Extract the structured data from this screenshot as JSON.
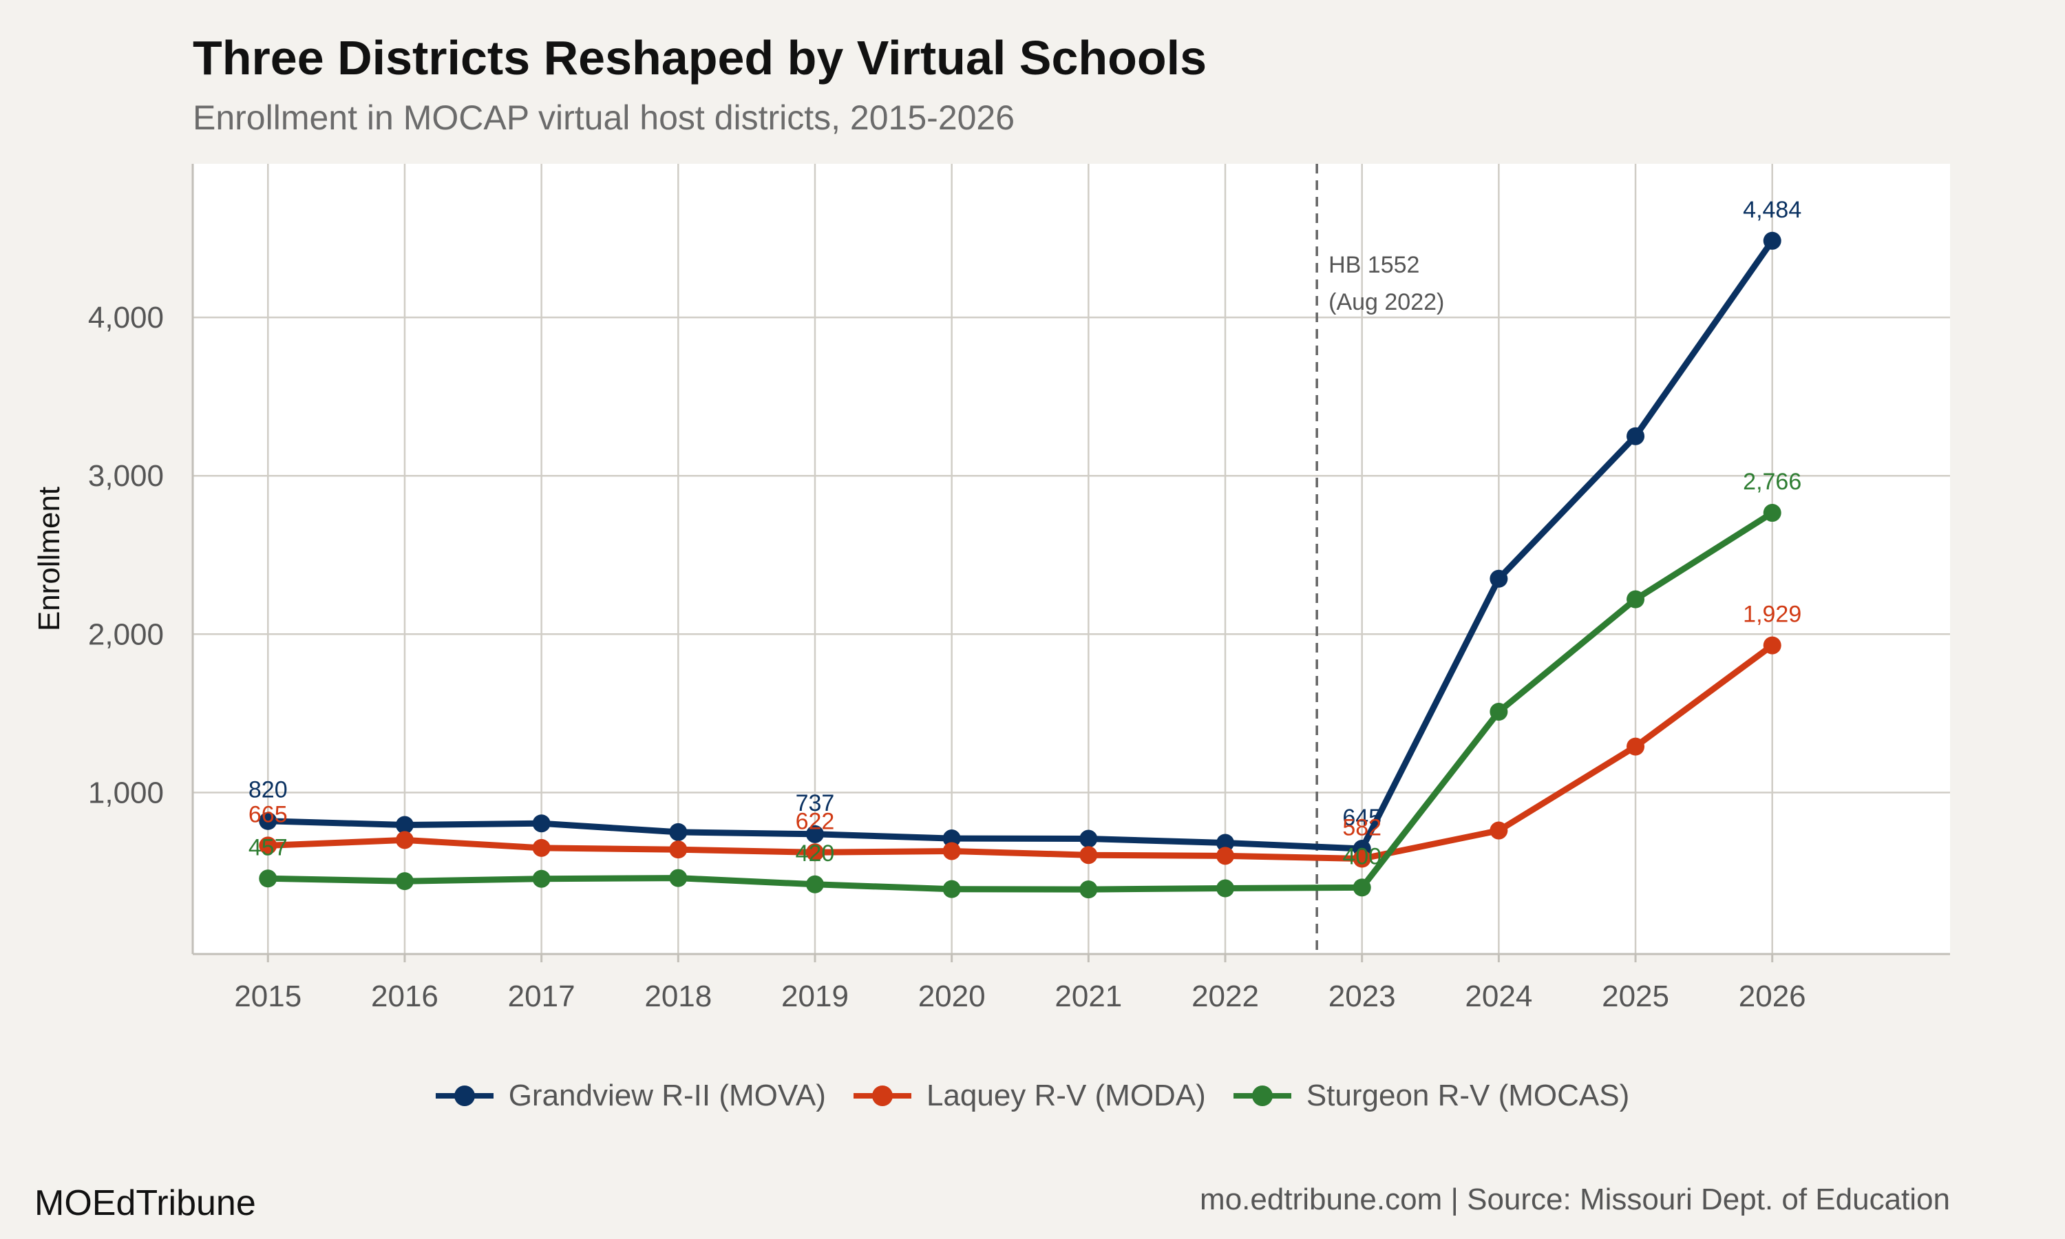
{
  "title": "Three Districts Reshaped by Virtual Schools",
  "subtitle": "Enrollment in MOCAP virtual host districts, 2015-2026",
  "brand": "MOEdTribune",
  "source": "mo.edtribune.com | Source: Missouri Dept. of Education",
  "chart_data": {
    "type": "line",
    "title": "Three Districts Reshaped by Virtual Schools",
    "subtitle": "Enrollment in MOCAP virtual host districts, 2015-2026",
    "xlabel": "",
    "ylabel": "Enrollment",
    "x": [
      2015,
      2016,
      2017,
      2018,
      2019,
      2020,
      2021,
      2022,
      2023,
      2024,
      2025,
      2026
    ],
    "xlim": [
      2014.45,
      2027.3
    ],
    "ylim": [
      -20,
      4970
    ],
    "yticks": [
      1000,
      2000,
      3000,
      4000
    ],
    "ytick_labels": [
      "1,000",
      "2,000",
      "3,000",
      "4,000"
    ],
    "grid": true,
    "legend_position": "bottom",
    "series": [
      {
        "name": "Grandview R-II (MOVA)",
        "color": "#0a3161",
        "values": [
          820,
          795,
          805,
          750,
          737,
          710,
          708,
          682,
          645,
          2350,
          3250,
          4484
        ],
        "labels": [
          {
            "x": 2015,
            "text": "820"
          },
          {
            "x": 2019,
            "text": "737"
          },
          {
            "x": 2023,
            "text": "645"
          },
          {
            "x": 2026,
            "text": "4,484"
          }
        ]
      },
      {
        "name": "Laquey R-V (MODA)",
        "color": "#d13a14",
        "values": [
          665,
          700,
          650,
          640,
          622,
          630,
          605,
          600,
          582,
          760,
          1290,
          1929
        ],
        "labels": [
          {
            "x": 2015,
            "text": "665"
          },
          {
            "x": 2019,
            "text": "622"
          },
          {
            "x": 2023,
            "text": "582"
          },
          {
            "x": 2026,
            "text": "1,929"
          }
        ]
      },
      {
        "name": "Sturgeon R-V (MOCAS)",
        "color": "#2e7d32",
        "values": [
          457,
          440,
          455,
          460,
          420,
          390,
          388,
          395,
          400,
          1510,
          2220,
          2766
        ],
        "labels": [
          {
            "x": 2015,
            "text": "457"
          },
          {
            "x": 2019,
            "text": "420"
          },
          {
            "x": 2023,
            "text": "400"
          },
          {
            "x": 2026,
            "text": "2,766"
          }
        ]
      }
    ],
    "annotations": [
      {
        "type": "vline",
        "x": 2022.67,
        "text_line1": "HB 1552",
        "text_line2": "(Aug 2022)"
      }
    ]
  }
}
